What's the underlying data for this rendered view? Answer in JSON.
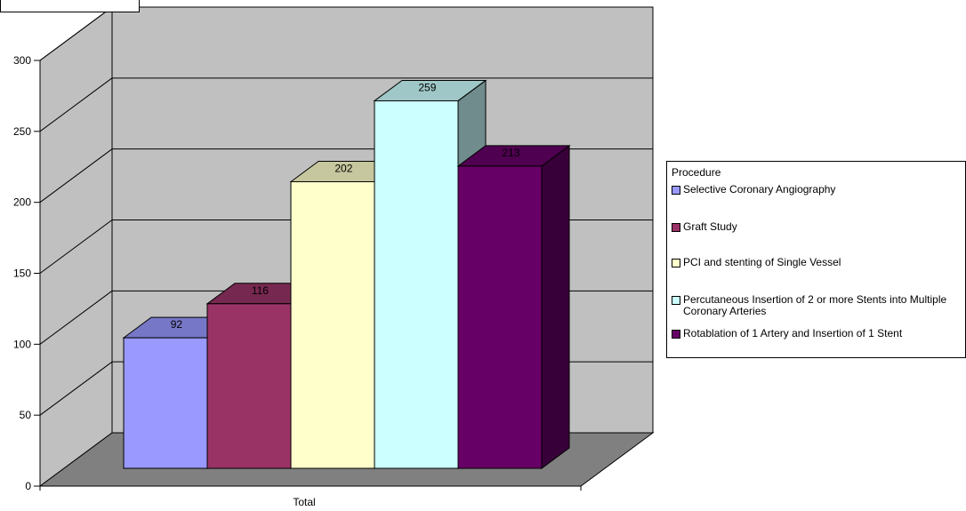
{
  "header_box_text": "",
  "chart_data": {
    "type": "bar",
    "bar_style": "3d-clustered",
    "categories": [
      "Total"
    ],
    "series": [
      {
        "name": "Selective Coronary Angiography",
        "values": [
          92
        ],
        "color": "#9999ff"
      },
      {
        "name": "Graft Study",
        "values": [
          116
        ],
        "color": "#993366"
      },
      {
        "name": "PCI and stenting of Single Vessel",
        "values": [
          202
        ],
        "color": "#ffffcc"
      },
      {
        "name": "Percutaneous Insertion of 2 or more Stents into Multiple Coronary Arteries",
        "values": [
          259
        ],
        "color": "#ccffff"
      },
      {
        "name": "Rotablation of 1 Artery and Insertion of 1 Stent",
        "values": [
          213
        ],
        "color": "#660066"
      }
    ],
    "legend_title": "Procedure",
    "legend_position": "right",
    "ylim": [
      0,
      300
    ],
    "yticks": [
      0,
      50,
      100,
      150,
      200,
      250,
      300
    ],
    "grid": true,
    "data_labels": true,
    "wall_color": "#c0c0c0",
    "floor_color": "#808080"
  }
}
